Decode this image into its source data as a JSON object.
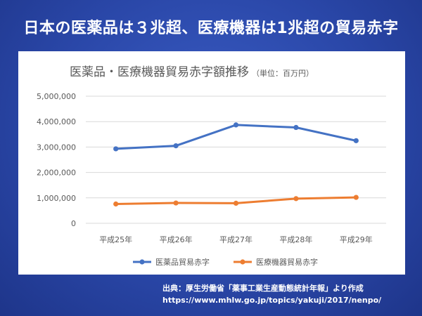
{
  "slide": {
    "title": "日本の医薬品は３兆超、医療機器は1兆超の貿易赤字",
    "source_line1": "出典：厚生労働省「薬事工業生産動態統計年報」より作成",
    "source_line2": "https://www.mhlw.go.jp/topics/yakuji/2017/nenpo/"
  },
  "chart_data": {
    "type": "line",
    "title": "医薬品・医療機器貿易赤字額推移",
    "subtitle": "（単位：百万円）",
    "categories": [
      "平成25年",
      "平成26年",
      "平成27年",
      "平成28年",
      "平成29年"
    ],
    "ylim": [
      0,
      5000000
    ],
    "yticks": [
      "0",
      "1,000,000",
      "2,000,000",
      "3,000,000",
      "4,000,000",
      "5,000,000"
    ],
    "grid": true,
    "legend_position": "bottom",
    "series": [
      {
        "name": "医薬品貿易赤字",
        "color": "#4472C4",
        "values": [
          2930000,
          3050000,
          3870000,
          3770000,
          3250000
        ]
      },
      {
        "name": "医療機器貿易赤字",
        "color": "#ED7D31",
        "values": [
          760000,
          800000,
          790000,
          970000,
          1020000
        ]
      }
    ]
  }
}
